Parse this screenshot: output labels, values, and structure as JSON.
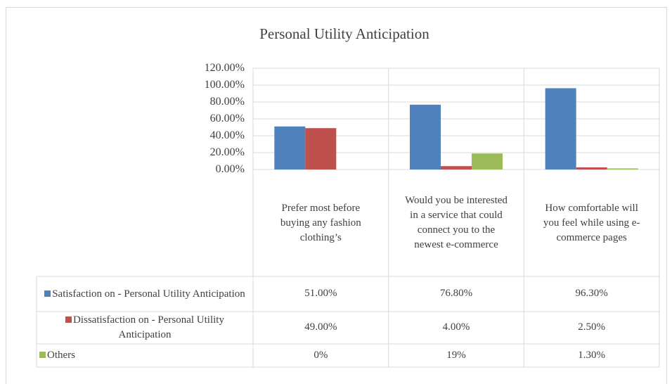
{
  "chart_data": {
    "type": "bar",
    "title": "Personal Utility Anticipation",
    "categories": [
      "Prefer most before buying any fashion clothing’s",
      "Would you be interested in a service that could connect you to the newest e-commerce",
      "How comfortable will you feel while using e-commerce pages"
    ],
    "series": [
      {
        "name": "Satisfaction on - Personal Utility Anticipation",
        "color": "#4f81bd",
        "values": [
          51,
          76.8,
          96.3
        ],
        "value_labels": [
          "51.00%",
          "76.80%",
          "96.30%"
        ]
      },
      {
        "name": "Dissatisfaction on - Personal Utility Anticipation",
        "color": "#c0504d",
        "values": [
          49,
          4,
          2.5
        ],
        "value_labels": [
          "49.00%",
          "4.00%",
          "2.50%"
        ]
      },
      {
        "name": "Others",
        "color": "#9bbb59",
        "values": [
          0,
          19,
          1.3
        ],
        "value_labels": [
          "0%",
          "19%",
          "1.30%"
        ]
      }
    ],
    "ylim": [
      0,
      120
    ],
    "yticks": [
      {
        "value": 0,
        "label": "0.00%"
      },
      {
        "value": 20,
        "label": "20.00%"
      },
      {
        "value": 40,
        "label": "40.00%"
      },
      {
        "value": 60,
        "label": "60.00%"
      },
      {
        "value": 80,
        "label": "80.00%"
      },
      {
        "value": 100,
        "label": "100.00%"
      },
      {
        "value": 120,
        "label": "120.00%"
      }
    ],
    "grid": true
  }
}
